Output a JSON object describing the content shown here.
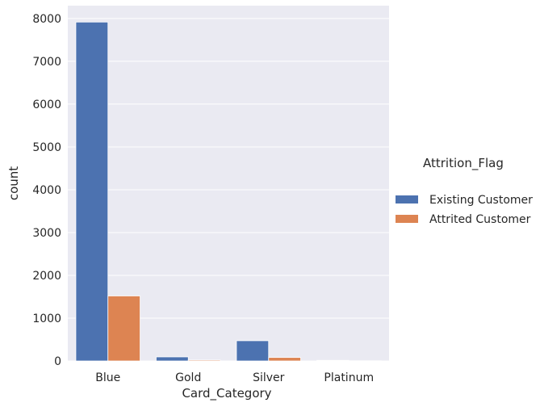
{
  "chart_data": {
    "type": "bar",
    "title": "",
    "xlabel": "Card_Category",
    "ylabel": "count",
    "categories": [
      "Blue",
      "Gold",
      "Silver",
      "Platinum"
    ],
    "series": [
      {
        "name": "Existing Customer",
        "values": [
          7917,
          95,
          473,
          15
        ],
        "color": "#4c72b0"
      },
      {
        "name": "Attrited Customer",
        "values": [
          1519,
          21,
          82,
          5
        ],
        "color": "#dd8452"
      }
    ],
    "ylim": [
      0,
      8300
    ],
    "yticks": [
      0,
      1000,
      2000,
      3000,
      4000,
      5000,
      6000,
      7000,
      8000
    ],
    "grid": true,
    "background": "#eaeaf2",
    "legend": {
      "title": "Attrition_Flag",
      "placement": "right"
    }
  }
}
